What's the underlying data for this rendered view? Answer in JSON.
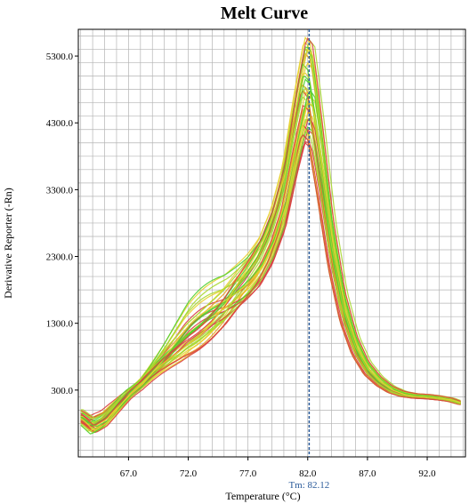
{
  "chart_data": {
    "type": "line",
    "title": "Melt Curve",
    "xlabel": "Temperature (°C)",
    "ylabel": "Derivative Reporter (-Rn)",
    "xlim": [
      62.8,
      95.2
    ],
    "ylim": [
      -700,
      5700
    ],
    "x_ticks": [
      67.0,
      72.0,
      77.0,
      82.0,
      87.0,
      92.0
    ],
    "x_tick_labels": [
      "67.0",
      "72.0",
      "77.0",
      "82.0",
      "87.0",
      "92.0"
    ],
    "y_ticks": [
      300,
      1300,
      2300,
      3300,
      4300,
      5300
    ],
    "y_tick_labels": [
      "300.0",
      "1300.0",
      "2300.0",
      "3300.0",
      "4300.0",
      "5300.0"
    ],
    "grid": true,
    "threshold_line": {
      "x": 82.12,
      "label": "Tm: 82.12",
      "color": "#2a5a9a"
    },
    "series_colors": [
      "#d94040",
      "#e8a020",
      "#e8d030",
      "#a8d830",
      "#50d030"
    ],
    "series_count": 40,
    "profile": {
      "x": [
        63.0,
        64.0,
        65.0,
        66.0,
        67.0,
        68.0,
        69.0,
        70.0,
        71.0,
        72.0,
        73.0,
        74.0,
        75.0,
        76.0,
        77.0,
        78.0,
        79.0,
        80.0,
        81.0,
        81.8,
        82.3,
        83.0,
        84.0,
        85.0,
        86.0,
        87.0,
        88.0,
        89.0,
        90.0,
        91.0,
        92.0,
        93.0,
        94.0,
        95.0
      ],
      "y": [
        -100,
        -250,
        -150,
        50,
        250,
        400,
        600,
        800,
        1000,
        1200,
        1350,
        1500,
        1650,
        1850,
        2050,
        2300,
        2700,
        3300,
        4300,
        5000,
        4900,
        4000,
        2600,
        1600,
        1000,
        650,
        450,
        320,
        250,
        220,
        210,
        190,
        160,
        100
      ]
    }
  }
}
